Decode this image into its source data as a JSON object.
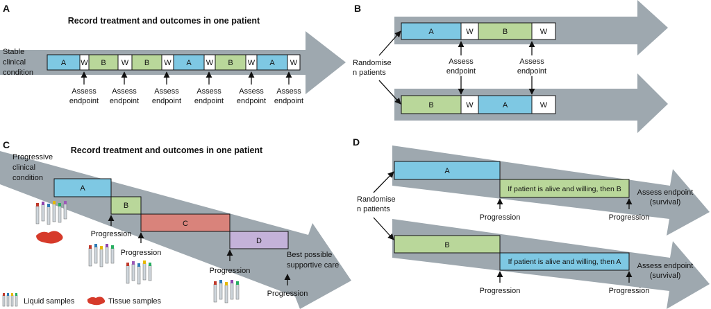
{
  "colors": {
    "arrow": "#9ea8af",
    "a": "#7ec8e3",
    "b": "#b9d79a",
    "w": "#ffffff",
    "c": "#d9837b",
    "d": "#c4b2d9",
    "border": "#111111"
  },
  "panelA": {
    "letter": "A",
    "title": "Record treatment and outcomes in one patient",
    "condition_line1": "Stable",
    "condition_line2": "clinical",
    "condition_line3": "condition",
    "sequence": [
      "A",
      "W",
      "B",
      "W",
      "B",
      "W",
      "A",
      "W",
      "B",
      "W",
      "A",
      "W"
    ],
    "assess_line1": "Assess",
    "assess_line2": "endpoint"
  },
  "panelB": {
    "letter": "B",
    "randomise_line1": "Randomise",
    "randomise_line2": "n patients",
    "top_sequence": [
      "A",
      "W",
      "B",
      "W"
    ],
    "bottom_sequence": [
      "B",
      "W",
      "A",
      "W"
    ],
    "assess_line1": "Assess",
    "assess_line2": "endpoint"
  },
  "panelC": {
    "letter": "C",
    "title": "Record treatment and outcomes in one patient",
    "condition_line1": "Progressive",
    "condition_line2": "clinical",
    "condition_line3": "condition",
    "boxes": [
      "A",
      "B",
      "C",
      "D"
    ],
    "progression": "Progression",
    "best_care_line1": "Best possible",
    "best_care_line2": "supportive care",
    "legend_liquid": "Liquid samples",
    "legend_tissue": "Tissue samples"
  },
  "panelD": {
    "letter": "D",
    "randomise_line1": "Randomise",
    "randomise_line2": "n patients",
    "top_first": "A",
    "top_second": "If patient is alive and willing, then B",
    "bottom_first": "B",
    "bottom_second": "If patient is alive and willing, then A",
    "progression": "Progression",
    "assess_line1": "Assess endpoint",
    "assess_line2": "(survival)"
  }
}
